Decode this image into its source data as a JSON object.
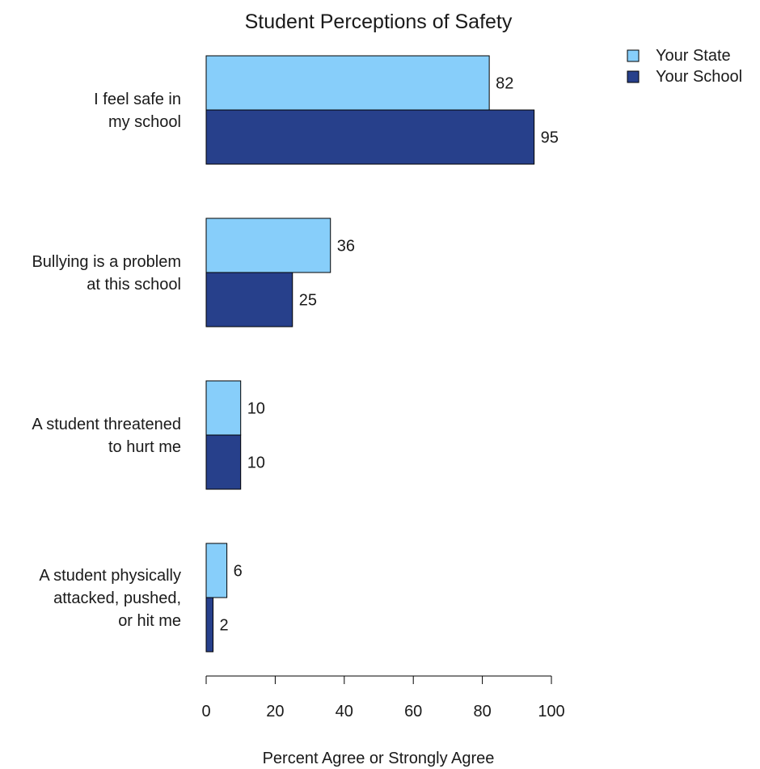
{
  "chart_data": {
    "type": "bar",
    "orientation": "horizontal",
    "title": "Student Perceptions of Safety",
    "xlabel": "Percent Agree or Strongly Agree",
    "ylabel": "",
    "xlim": [
      0,
      100
    ],
    "xticks": [
      0,
      20,
      40,
      60,
      80,
      100
    ],
    "categories": [
      [
        "I feel safe in",
        "my school"
      ],
      [
        "Bullying is a problem",
        "at this school"
      ],
      [
        "A student threatened",
        "to hurt me"
      ],
      [
        "A student physically",
        "attacked, pushed,",
        "or hit me"
      ]
    ],
    "series": [
      {
        "name": "Your State",
        "values": [
          82,
          36,
          10,
          6
        ],
        "color": "#87CEFA"
      },
      {
        "name": "Your School",
        "values": [
          95,
          25,
          10,
          2
        ],
        "color": "#27408B"
      }
    ],
    "data_labels": true,
    "grid": false,
    "legend_position": "top-right",
    "colors": {
      "state": "#87CEFA",
      "school": "#27408B",
      "outline": "#000000"
    }
  }
}
